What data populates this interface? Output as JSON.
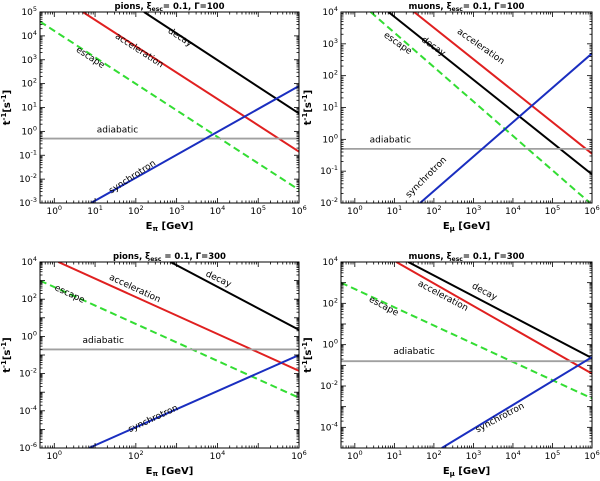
{
  "chart_data": [
    {
      "type": "line",
      "title": "pions, ξ",
      "title_sub": "esc",
      "title_rest": "= 0.1, Γ=100",
      "xlabel": "E",
      "xlabel_sub": "π",
      "xlabel_rest": " [GeV]",
      "ylabel": "t",
      "ylabel_sup": "-1",
      "ylabel_rest": "[s",
      "ylabel_sup2": "-1",
      "ylabel_end": "]",
      "xscale": "log",
      "yscale": "log",
      "xlim_exp": [
        -0.35,
        6.0
      ],
      "ylim_exp": [
        -3,
        5
      ],
      "xticks_exp": [
        0,
        1,
        2,
        3,
        4,
        5,
        6
      ],
      "yticks_exp": [
        -3,
        -2,
        -1,
        0,
        1,
        2,
        3,
        4,
        5
      ],
      "series": [
        {
          "name": "decay",
          "color": "#000000",
          "dash": false,
          "x_exp": [
            2.2,
            6.0
          ],
          "y_exp": [
            5.0,
            0.75
          ],
          "label_x_exp": 3.05,
          "label_y_exp": 3.85,
          "label_angle": 33
        },
        {
          "name": "acceleration",
          "color": "#e02020",
          "dash": false,
          "x_exp": [
            0.7,
            6.0
          ],
          "y_exp": [
            5.0,
            -0.85
          ],
          "label_x_exp": 2.05,
          "label_y_exp": 3.3,
          "label_angle": 33
        },
        {
          "name": "escape",
          "color": "#33dd33",
          "dash": true,
          "x_exp": [
            -0.35,
            6.0
          ],
          "y_exp": [
            4.6,
            -2.45
          ],
          "label_x_exp": 0.85,
          "label_y_exp": 3.0,
          "label_angle": 33
        },
        {
          "name": "adiabatic",
          "color": "#a0a0a0",
          "dash": false,
          "x_exp": [
            -0.35,
            6.0
          ],
          "y_exp": [
            -0.3,
            -0.3
          ],
          "label_x_exp": 1.55,
          "label_y_exp": -0.05,
          "label_angle": 0
        },
        {
          "name": "synchrotron",
          "color": "#1a2ec0",
          "dash": false,
          "x_exp": [
            0.9,
            6.0
          ],
          "y_exp": [
            -3.0,
            1.9
          ],
          "label_x_exp": 1.95,
          "label_y_exp": -2.0,
          "label_angle": -33
        }
      ]
    },
    {
      "type": "line",
      "title": "muons, ξ",
      "title_sub": "esc",
      "title_rest": "= 0.1, Γ=100",
      "xlabel": "E",
      "xlabel_sub": "μ",
      "xlabel_rest": " [GeV]",
      "ylabel": "t",
      "ylabel_sup": "-1",
      "ylabel_rest": "[s",
      "ylabel_sup2": "-1",
      "ylabel_end": "]",
      "xscale": "log",
      "yscale": "log",
      "xlim_exp": [
        -0.35,
        6.0
      ],
      "ylim_exp": [
        -2,
        4
      ],
      "xticks_exp": [
        0,
        1,
        2,
        3,
        4,
        5,
        6
      ],
      "yticks_exp": [
        -2,
        -1,
        0,
        1,
        2,
        3,
        4
      ],
      "series": [
        {
          "name": "decay",
          "color": "#000000",
          "dash": false,
          "x_exp": [
            0.85,
            6.0
          ],
          "y_exp": [
            4.0,
            -1.1
          ],
          "label_x_exp": 1.95,
          "label_y_exp": 2.85,
          "label_angle": 35
        },
        {
          "name": "acceleration",
          "color": "#e02020",
          "dash": false,
          "x_exp": [
            1.5,
            6.0
          ],
          "y_exp": [
            4.0,
            -0.45
          ],
          "label_x_exp": 3.15,
          "label_y_exp": 2.85,
          "label_angle": 35
        },
        {
          "name": "escape",
          "color": "#33dd33",
          "dash": true,
          "x_exp": [
            0.4,
            5.95
          ],
          "y_exp": [
            4.0,
            -2.0
          ],
          "label_x_exp": 1.05,
          "label_y_exp": 2.95,
          "label_angle": 35
        },
        {
          "name": "adiabatic",
          "color": "#a0a0a0",
          "dash": false,
          "x_exp": [
            -0.35,
            6.0
          ],
          "y_exp": [
            -0.3,
            -0.3
          ],
          "label_x_exp": 0.9,
          "label_y_exp": -0.1,
          "label_angle": 0
        },
        {
          "name": "synchrotron",
          "color": "#1a2ec0",
          "dash": false,
          "x_exp": [
            1.65,
            6.0
          ],
          "y_exp": [
            -2.0,
            2.7
          ],
          "label_x_exp": 1.85,
          "label_y_exp": -1.25,
          "label_angle": -45
        }
      ]
    },
    {
      "type": "line",
      "title": "pions, ξ",
      "title_sub": "esc",
      "title_rest": " = 0.1, Γ=300",
      "xlabel": "E",
      "xlabel_sub": "π",
      "xlabel_rest": " [GeV]",
      "ylabel": "t",
      "ylabel_sup": "-1",
      "ylabel_rest": "[s",
      "ylabel_sup2": "-1",
      "ylabel_end": "]",
      "xscale": "log",
      "yscale": "log",
      "xlim_exp": [
        -0.35,
        6.0
      ],
      "ylim_exp": [
        -6,
        4
      ],
      "xticks_exp": [
        0,
        2,
        4,
        6
      ],
      "xticks_minor_exp": [
        1,
        3,
        5
      ],
      "yticks_exp": [
        -6,
        -4,
        -2,
        0,
        2,
        4
      ],
      "series": [
        {
          "name": "decay",
          "color": "#000000",
          "dash": false,
          "x_exp": [
            2.85,
            6.0
          ],
          "y_exp": [
            4.0,
            0.35
          ],
          "label_x_exp": 4.0,
          "label_y_exp": 2.95,
          "label_angle": 25
        },
        {
          "name": "acceleration",
          "color": "#e02020",
          "dash": false,
          "x_exp": [
            0.1,
            6.0
          ],
          "y_exp": [
            4.0,
            -1.85
          ],
          "label_x_exp": 1.95,
          "label_y_exp": 2.45,
          "label_angle": 25
        },
        {
          "name": "escape",
          "color": "#33dd33",
          "dash": true,
          "x_exp": [
            -0.35,
            6.0
          ],
          "y_exp": [
            3.0,
            -3.3
          ],
          "label_x_exp": 0.35,
          "label_y_exp": 2.15,
          "label_angle": 25
        },
        {
          "name": "adiabatic",
          "color": "#a0a0a0",
          "dash": false,
          "x_exp": [
            -0.35,
            6.0
          ],
          "y_exp": [
            -0.7,
            -0.7
          ],
          "label_x_exp": 1.2,
          "label_y_exp": -0.35,
          "label_angle": 0
        },
        {
          "name": "synchrotron",
          "color": "#1a2ec0",
          "dash": false,
          "x_exp": [
            0.85,
            6.0
          ],
          "y_exp": [
            -6.0,
            -1.0
          ],
          "label_x_exp": 2.45,
          "label_y_exp": -4.55,
          "label_angle": -25
        }
      ]
    },
    {
      "type": "line",
      "title": "muons, ξ",
      "title_sub": "esc",
      "title_rest": "= 0.1, Γ=300",
      "xlabel": "E",
      "xlabel_sub": "μ",
      "xlabel_rest": " [GeV]",
      "ylabel": "t",
      "ylabel_sup": "-1",
      "ylabel_rest": "[s",
      "ylabel_sup2": "-1",
      "ylabel_end": "]",
      "xscale": "log",
      "yscale": "log",
      "xlim_exp": [
        -0.35,
        6.0
      ],
      "ylim_exp": [
        -5,
        4
      ],
      "xticks_exp": [
        0,
        1,
        2,
        3,
        4,
        5,
        6
      ],
      "yticks_exp": [
        -4,
        -2,
        0,
        2,
        4
      ],
      "series": [
        {
          "name": "decay",
          "color": "#000000",
          "dash": false,
          "x_exp": [
            1.35,
            6.0
          ],
          "y_exp": [
            4.0,
            -0.65
          ],
          "label_x_exp": 3.25,
          "label_y_exp": 2.45,
          "label_angle": 28
        },
        {
          "name": "acceleration",
          "color": "#e02020",
          "dash": false,
          "x_exp": [
            1.05,
            6.0
          ],
          "y_exp": [
            4.0,
            -1.4
          ],
          "label_x_exp": 2.2,
          "label_y_exp": 2.25,
          "label_angle": 28
        },
        {
          "name": "escape",
          "color": "#33dd33",
          "dash": true,
          "x_exp": [
            -0.35,
            6.0
          ],
          "y_exp": [
            3.0,
            -2.6
          ],
          "label_x_exp": 0.7,
          "label_y_exp": 1.75,
          "label_angle": 28
        },
        {
          "name": "adiabatic",
          "color": "#a0a0a0",
          "dash": false,
          "x_exp": [
            -0.35,
            6.0
          ],
          "y_exp": [
            -0.8,
            -0.8
          ],
          "label_x_exp": 1.5,
          "label_y_exp": -0.45,
          "label_angle": 0
        },
        {
          "name": "synchrotron",
          "color": "#1a2ec0",
          "dash": false,
          "x_exp": [
            2.2,
            6.0
          ],
          "y_exp": [
            -5.0,
            -0.6
          ],
          "label_x_exp": 3.7,
          "label_y_exp": -3.65,
          "label_angle": -28
        }
      ]
    }
  ]
}
